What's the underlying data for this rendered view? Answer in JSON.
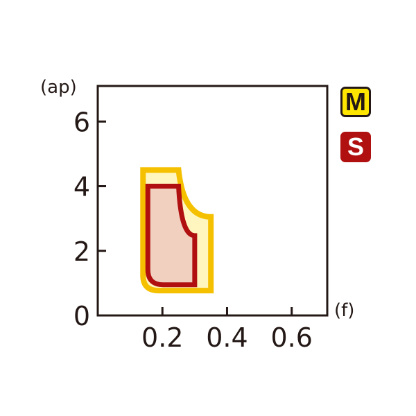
{
  "chart_data": {
    "type": "area",
    "xlabel": "(f)",
    "ylabel": "(ap)",
    "xlim": [
      0,
      0.71
    ],
    "ylim": [
      0,
      7.1
    ],
    "xticks": [
      "0.2",
      "0.4",
      "0.6"
    ],
    "xtick_values": [
      0.2,
      0.4,
      0.6
    ],
    "yticks": [
      "0",
      "2",
      "4",
      "6"
    ],
    "ytick_values": [
      0,
      2,
      4,
      6
    ],
    "grid": false,
    "legend_placement": "right",
    "series": [
      {
        "name": "M",
        "fill": "#fff6bf",
        "stroke": "#f5c000",
        "points": [
          [
            0.14,
            4.5
          ],
          [
            0.25,
            4.5
          ],
          [
            0.35,
            3.05
          ],
          [
            0.35,
            0.77
          ],
          [
            0.14,
            0.77
          ]
        ]
      },
      {
        "name": "S",
        "fill": "#f2d0c0",
        "stroke": "#b01010",
        "points": [
          [
            0.155,
            4.0
          ],
          [
            0.25,
            4.0
          ],
          [
            0.3,
            2.47
          ],
          [
            0.3,
            0.95
          ],
          [
            0.155,
            0.95
          ]
        ]
      }
    ],
    "legend": [
      {
        "label": "M",
        "bg": "#ffe600",
        "fg": "#231815",
        "border": "#231815"
      },
      {
        "label": "S",
        "bg": "#b01010",
        "fg": "#ffffff",
        "border": "#b01010"
      }
    ]
  }
}
